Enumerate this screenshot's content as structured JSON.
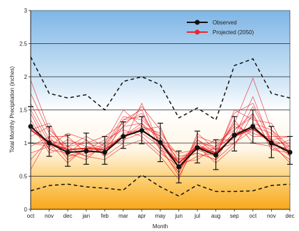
{
  "chart_data": {
    "type": "line",
    "title": "",
    "xlabel": "Month",
    "ylabel": "Total Monthly Precipitation (inches)",
    "categories": [
      "oct",
      "nov",
      "dec",
      "jan",
      "feb",
      "mar",
      "apr",
      "may",
      "jun",
      "jul",
      "aug",
      "sep",
      "oct",
      "nov",
      "dec"
    ],
    "ylim": [
      0,
      3
    ],
    "yticks": [
      "0",
      "0.5",
      "1",
      "1.5",
      "2",
      "2.5",
      "3"
    ],
    "gridlines": [
      0.5,
      1,
      1.5,
      2,
      2.5
    ],
    "legend_position": "top-right",
    "legend": [
      "Observed",
      "Projected (2050)"
    ],
    "colors": {
      "observed": "#111111",
      "projected": "#e8262b",
      "bound": "#111111",
      "bg_top": "#7fb6e6",
      "bg_mid": "#ffffff",
      "bg_bottom": "#f7a81b"
    },
    "series": [
      {
        "name": "Observed",
        "role": "observed",
        "values": [
          1.25,
          1.0,
          0.86,
          0.88,
          0.86,
          1.1,
          1.19,
          1.01,
          0.64,
          0.93,
          0.82,
          1.12,
          1.25,
          1.0,
          0.86
        ]
      },
      {
        "name": "Projected (2050)",
        "role": "projected",
        "values": [
          1.2,
          1.0,
          0.9,
          0.92,
          0.9,
          1.1,
          1.2,
          1.0,
          0.7,
          0.95,
          0.85,
          1.1,
          1.22,
          1.0,
          0.88
        ]
      }
    ],
    "observed_error_high": [
      1.55,
      1.25,
      1.12,
      1.15,
      1.1,
      1.32,
      1.4,
      1.3,
      0.88,
      1.18,
      1.05,
      1.4,
      1.5,
      1.25,
      1.1
    ],
    "observed_error_low": [
      1.0,
      0.8,
      0.65,
      0.68,
      0.68,
      0.92,
      0.99,
      0.72,
      0.4,
      0.7,
      0.6,
      0.88,
      1.0,
      0.78,
      0.68
    ],
    "upper_bound": [
      2.3,
      1.75,
      1.68,
      1.73,
      1.5,
      1.93,
      2.0,
      1.88,
      1.38,
      1.53,
      1.35,
      2.17,
      2.27,
      1.75,
      1.68
    ],
    "lower_bound": [
      0.28,
      0.36,
      0.38,
      0.34,
      0.32,
      0.29,
      0.52,
      0.34,
      0.2,
      0.37,
      0.27,
      0.27,
      0.28,
      0.36,
      0.38
    ],
    "projection_ensemble": [
      [
        1.95,
        1.2,
        0.95,
        1.0,
        0.92,
        1.35,
        1.4,
        1.05,
        0.62,
        1.05,
        0.9,
        1.3,
        1.98,
        1.2,
        0.95
      ],
      [
        1.6,
        1.05,
        0.8,
        0.85,
        0.9,
        1.25,
        1.55,
        1.2,
        0.7,
        0.9,
        0.8,
        1.45,
        1.6,
        1.05,
        0.8
      ],
      [
        1.45,
        0.9,
        1.05,
        0.95,
        0.85,
        1.1,
        1.3,
        0.9,
        0.55,
        1.1,
        1.0,
        1.2,
        1.4,
        0.95,
        1.05
      ],
      [
        1.1,
        1.25,
        0.85,
        0.75,
        1.0,
        1.5,
        1.25,
        1.15,
        0.8,
        0.85,
        0.75,
        1.0,
        1.3,
        1.2,
        0.85
      ],
      [
        0.85,
        0.95,
        1.15,
        1.05,
        0.8,
        1.0,
        1.6,
        0.95,
        0.5,
        1.0,
        0.95,
        1.25,
        1.15,
        1.05,
        1.1
      ],
      [
        0.6,
        1.1,
        0.75,
        0.9,
        1.05,
        1.2,
        1.1,
        0.85,
        0.65,
        0.8,
        0.85,
        1.35,
        1.0,
        0.95,
        0.75
      ],
      [
        1.3,
        0.85,
        0.95,
        1.1,
        0.95,
        1.4,
        1.35,
        1.1,
        0.75,
        0.95,
        0.7,
        0.95,
        1.45,
        0.9,
        0.95
      ],
      [
        1.75,
        1.15,
        0.9,
        0.8,
        0.75,
        0.95,
        1.05,
        0.8,
        0.45,
        1.15,
        0.9,
        1.15,
        1.25,
        1.15,
        0.9
      ],
      [
        1.0,
        0.95,
        1.0,
        1.0,
        1.1,
        1.3,
        1.45,
        1.0,
        0.85,
        0.9,
        1.05,
        1.05,
        1.55,
        1.0,
        1.0
      ],
      [
        1.2,
        1.3,
        0.8,
        0.9,
        0.85,
        1.15,
        1.2,
        1.25,
        0.6,
        1.0,
        0.8,
        1.5,
        1.35,
        1.3,
        0.8
      ],
      [
        1.5,
        1.0,
        0.7,
        0.95,
        0.9,
        1.05,
        1.15,
        0.95,
        0.7,
        0.75,
        0.95,
        1.1,
        1.7,
        1.0,
        0.7
      ],
      [
        0.95,
        1.1,
        1.1,
        0.85,
        1.0,
        1.25,
        1.3,
        1.05,
        0.55,
        1.05,
        0.85,
        1.3,
        1.1,
        1.1,
        1.1
      ],
      [
        1.35,
        0.9,
        0.85,
        1.05,
        0.8,
        1.35,
        1.5,
        0.9,
        0.75,
        0.85,
        0.75,
        1.2,
        1.45,
        0.9,
        0.85
      ],
      [
        0.75,
        1.05,
        0.95,
        0.8,
        0.95,
        1.1,
        1.25,
        1.1,
        0.6,
        0.95,
        0.9,
        1.0,
        1.2,
        1.05,
        0.95
      ]
    ]
  }
}
